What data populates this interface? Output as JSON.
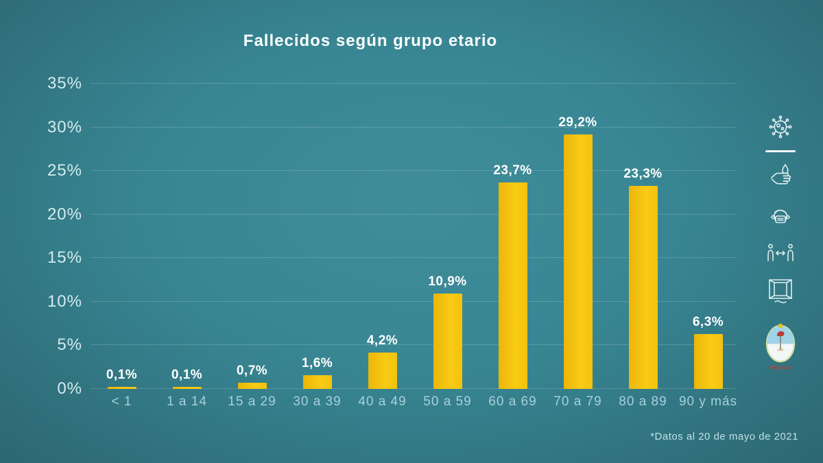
{
  "title": "Fallecidos según grupo etario",
  "footnote": "*Datos al 20 de mayo de 2021",
  "colors": {
    "background_center": "#3F8D99",
    "background_edge": "#2C6772",
    "bar": "#F4C412",
    "value_label": "#FFFFFF",
    "y_axis_label": "#D3ECEF",
    "x_axis_label": "#A7D1D8",
    "gridline": "rgba(255,255,255,0.17)",
    "icon": "#EAF5F7"
  },
  "chart_data": {
    "type": "bar",
    "title": "Fallecidos según grupo etario",
    "categories": [
      "< 1",
      "1 a 14",
      "15 a 29",
      "30 a 39",
      "40 a 49",
      "50 a 59",
      "60 a 69",
      "70 a 79",
      "80 a 89",
      "90 y más"
    ],
    "values": [
      0.1,
      0.1,
      0.7,
      1.6,
      4.2,
      10.9,
      23.7,
      29.2,
      23.3,
      6.3
    ],
    "value_labels": [
      "0,1%",
      "0,1%",
      "0,7%",
      "1,6%",
      "4,2%",
      "10,9%",
      "23,7%",
      "29,2%",
      "23,3%",
      "6,3%"
    ],
    "xlabel": "",
    "ylabel": "",
    "ylim": [
      0,
      35
    ],
    "ytick_step": 5,
    "ytick_labels": [
      "0%",
      "5%",
      "10%",
      "15%",
      "20%",
      "25%",
      "30%",
      "35%"
    ],
    "grid": true,
    "legend": false
  },
  "sidebar": {
    "icons": [
      "virus-icon",
      "hand-washing-icon",
      "face-mask-icon",
      "social-distance-icon",
      "open-window-icon"
    ]
  },
  "logo": {
    "line1": "MENDOZA",
    "line2": "GOBIERNO"
  }
}
